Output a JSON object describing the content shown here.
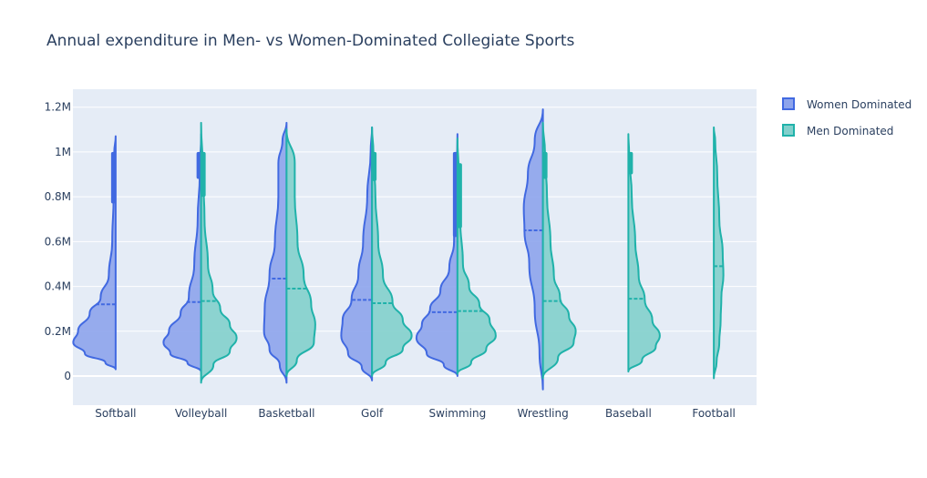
{
  "chart_data": {
    "type": "violin",
    "title": "Annual expenditure in Men- vs Women-Dominated Collegiate Sports",
    "xlabel": "",
    "ylabel": "",
    "ylim": [
      -130000,
      1280000
    ],
    "yticks": [
      0,
      200000,
      400000,
      600000,
      800000,
      1000000,
      1200000
    ],
    "ytick_labels": [
      "0",
      "0.2M",
      "0.4M",
      "0.6M",
      "0.8M",
      "1M",
      "1.2M"
    ],
    "categories": [
      "Softball",
      "Volleyball",
      "Basketball",
      "Golf",
      "Swimming",
      "Wrestling",
      "Baseball",
      "Football"
    ],
    "grid": true,
    "legend_position": "top-right",
    "series": [
      {
        "name": "Women Dominated",
        "side": "negative",
        "line_color": "#4169e1",
        "fill_color": "#8da4ec",
        "violins": {
          "Softball": {
            "min": 30000,
            "max": 1070000,
            "mean": 320000,
            "q1": 770000,
            "q3": 1000000,
            "profile": [
              [
                30000,
                0
              ],
              [
                60000,
                0.15
              ],
              [
                100000,
                0.45
              ],
              [
                150000,
                0.62
              ],
              [
                200000,
                0.55
              ],
              [
                280000,
                0.38
              ],
              [
                350000,
                0.22
              ],
              [
                450000,
                0.1
              ],
              [
                600000,
                0.05
              ],
              [
                800000,
                0.03
              ],
              [
                1000000,
                0.02
              ],
              [
                1070000,
                0
              ]
            ]
          },
          "Volleyball": {
            "min": 20000,
            "max": 1080000,
            "mean": 330000,
            "q1": 880000,
            "q3": 1000000,
            "profile": [
              [
                20000,
                0
              ],
              [
                60000,
                0.2
              ],
              [
                100000,
                0.45
              ],
              [
                150000,
                0.55
              ],
              [
                200000,
                0.47
              ],
              [
                280000,
                0.3
              ],
              [
                350000,
                0.18
              ],
              [
                500000,
                0.1
              ],
              [
                700000,
                0.05
              ],
              [
                900000,
                0.02
              ],
              [
                1080000,
                0
              ]
            ]
          },
          "Basketball": {
            "min": -30000,
            "max": 1130000,
            "mean": 435000,
            "q1": 0,
            "q3": 0,
            "profile": [
              [
                -30000,
                0
              ],
              [
                50000,
                0.1
              ],
              [
                120000,
                0.25
              ],
              [
                200000,
                0.33
              ],
              [
                300000,
                0.32
              ],
              [
                450000,
                0.25
              ],
              [
                600000,
                0.17
              ],
              [
                800000,
                0.12
              ],
              [
                950000,
                0.12
              ],
              [
                1050000,
                0.06
              ],
              [
                1130000,
                0
              ]
            ]
          },
          "Golf": {
            "min": -20000,
            "max": 1110000,
            "mean": 340000,
            "q1": 0,
            "q3": 0,
            "profile": [
              [
                -20000,
                0
              ],
              [
                40000,
                0.15
              ],
              [
                100000,
                0.35
              ],
              [
                180000,
                0.45
              ],
              [
                250000,
                0.43
              ],
              [
                340000,
                0.3
              ],
              [
                450000,
                0.2
              ],
              [
                600000,
                0.13
              ],
              [
                800000,
                0.07
              ],
              [
                1000000,
                0.02
              ],
              [
                1110000,
                0
              ]
            ]
          },
          "Swimming": {
            "min": 0,
            "max": 1080000,
            "mean": 285000,
            "q1": 620000,
            "q3": 1000000,
            "profile": [
              [
                0,
                0
              ],
              [
                50000,
                0.2
              ],
              [
                100000,
                0.45
              ],
              [
                170000,
                0.6
              ],
              [
                230000,
                0.52
              ],
              [
                300000,
                0.4
              ],
              [
                380000,
                0.25
              ],
              [
                480000,
                0.12
              ],
              [
                600000,
                0.05
              ],
              [
                800000,
                0.03
              ],
              [
                1080000,
                0
              ]
            ]
          },
          "Wrestling": {
            "min": -60000,
            "max": 1190000,
            "mean": 650000,
            "q1": 0,
            "q3": 0,
            "profile": [
              [
                -60000,
                0
              ],
              [
                100000,
                0.05
              ],
              [
                300000,
                0.12
              ],
              [
                500000,
                0.2
              ],
              [
                650000,
                0.27
              ],
              [
                750000,
                0.28
              ],
              [
                900000,
                0.22
              ],
              [
                1050000,
                0.12
              ],
              [
                1190000,
                0
              ]
            ]
          }
        }
      },
      {
        "name": "Men Dominated",
        "side": "positive",
        "line_color": "#20b2aa",
        "fill_color": "#82d0cc",
        "violins": {
          "Volleyball": {
            "min": -30000,
            "max": 1130000,
            "mean": 335000,
            "q1": 800000,
            "q3": 1000000,
            "profile": [
              [
                -30000,
                0
              ],
              [
                50000,
                0.18
              ],
              [
                110000,
                0.42
              ],
              [
                170000,
                0.52
              ],
              [
                230000,
                0.42
              ],
              [
                300000,
                0.28
              ],
              [
                380000,
                0.17
              ],
              [
                500000,
                0.1
              ],
              [
                700000,
                0.05
              ],
              [
                900000,
                0.03
              ],
              [
                1130000,
                0
              ]
            ]
          },
          "Basketball": {
            "min": 0,
            "max": 1100000,
            "mean": 390000,
            "q1": 0,
            "q3": 0,
            "profile": [
              [
                0,
                0
              ],
              [
                70000,
                0.15
              ],
              [
                150000,
                0.4
              ],
              [
                230000,
                0.42
              ],
              [
                320000,
                0.36
              ],
              [
                450000,
                0.25
              ],
              [
                600000,
                0.16
              ],
              [
                800000,
                0.12
              ],
              [
                950000,
                0.12
              ],
              [
                1100000,
                0
              ]
            ]
          },
          "Golf": {
            "min": 0,
            "max": 1110000,
            "mean": 325000,
            "q1": 870000,
            "q3": 1000000,
            "profile": [
              [
                0,
                0
              ],
              [
                60000,
                0.2
              ],
              [
                120000,
                0.45
              ],
              [
                180000,
                0.58
              ],
              [
                250000,
                0.45
              ],
              [
                330000,
                0.3
              ],
              [
                450000,
                0.16
              ],
              [
                600000,
                0.09
              ],
              [
                800000,
                0.05
              ],
              [
                1000000,
                0.02
              ],
              [
                1110000,
                0
              ]
            ]
          },
          "Swimming": {
            "min": 10000,
            "max": 1060000,
            "mean": 290000,
            "q1": 660000,
            "q3": 950000,
            "profile": [
              [
                10000,
                0
              ],
              [
                60000,
                0.2
              ],
              [
                120000,
                0.42
              ],
              [
                180000,
                0.56
              ],
              [
                250000,
                0.47
              ],
              [
                320000,
                0.32
              ],
              [
                400000,
                0.17
              ],
              [
                500000,
                0.08
              ],
              [
                700000,
                0.04
              ],
              [
                900000,
                0.02
              ],
              [
                1060000,
                0
              ]
            ]
          },
          "Wrestling": {
            "min": -10000,
            "max": 1130000,
            "mean": 335000,
            "q1": 880000,
            "q3": 1000000,
            "profile": [
              [
                -10000,
                0
              ],
              [
                80000,
                0.22
              ],
              [
                150000,
                0.45
              ],
              [
                200000,
                0.48
              ],
              [
                270000,
                0.38
              ],
              [
                350000,
                0.25
              ],
              [
                450000,
                0.16
              ],
              [
                600000,
                0.11
              ],
              [
                800000,
                0.06
              ],
              [
                1000000,
                0.03
              ],
              [
                1130000,
                0
              ]
            ]
          },
          "Baseball": {
            "min": 20000,
            "max": 1080000,
            "mean": 345000,
            "q1": 900000,
            "q3": 1000000,
            "profile": [
              [
                20000,
                0
              ],
              [
                70000,
                0.2
              ],
              [
                130000,
                0.4
              ],
              [
                180000,
                0.46
              ],
              [
                250000,
                0.35
              ],
              [
                340000,
                0.24
              ],
              [
                450000,
                0.15
              ],
              [
                600000,
                0.1
              ],
              [
                800000,
                0.05
              ],
              [
                1000000,
                0.01
              ],
              [
                1080000,
                0
              ]
            ]
          },
          "Football": {
            "min": -10000,
            "max": 1110000,
            "mean": 490000,
            "q1": 0,
            "q3": 0,
            "profile": [
              [
                -10000,
                0
              ],
              [
                60000,
                0.04
              ],
              [
                150000,
                0.08
              ],
              [
                250000,
                0.1
              ],
              [
                350000,
                0.11
              ],
              [
                450000,
                0.14
              ],
              [
                550000,
                0.13
              ],
              [
                700000,
                0.08
              ],
              [
                900000,
                0.05
              ],
              [
                1050000,
                0.02
              ],
              [
                1110000,
                0
              ]
            ]
          }
        }
      }
    ]
  }
}
